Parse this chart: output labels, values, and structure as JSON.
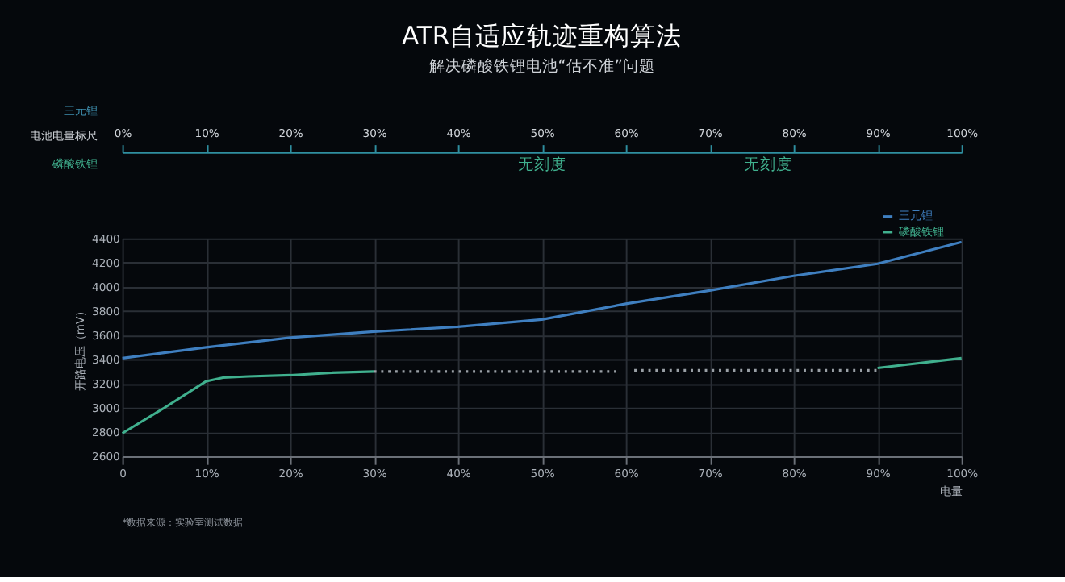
{
  "chart_data": {
    "type": "line",
    "title": "ATR自适应轨迹重构算法",
    "subtitle": "解决磷酸铁锂电池“估不准”问题",
    "xlabel": "电量",
    "ylabel": "开路电压（mV）",
    "x": [
      0,
      10,
      20,
      30,
      40,
      50,
      60,
      70,
      80,
      90,
      100
    ],
    "series": [
      {
        "name": "三元锂",
        "color": "#3f7fc0",
        "values": [
          3410,
          3500,
          3580,
          3630,
          3670,
          3730,
          3860,
          3970,
          4090,
          4190,
          4370
        ]
      },
      {
        "name": "磷酸铁锂",
        "color": "#40b08e",
        "x": [
          0,
          5,
          10,
          12,
          15,
          20,
          25,
          30,
          60,
          90,
          100
        ],
        "values": [
          2790,
          3000,
          3220,
          3250,
          3260,
          3270,
          3290,
          3300,
          null,
          3330,
          3410
        ]
      },
      {
        "color": "#9aa0a6",
        "line_style": "dotted",
        "x": [
          30,
          40,
          50,
          59
        ],
        "values": [
          3300,
          3300,
          3300,
          3300
        ]
      },
      {
        "color": "#9aa0a6",
        "line_style": "dotted",
        "x": [
          61,
          70,
          80,
          90
        ],
        "values": [
          3310,
          3310,
          3310,
          3310
        ]
      }
    ],
    "xlim": [
      0,
      100
    ],
    "xticks": [
      {
        "value": 0,
        "label": "0"
      },
      {
        "value": 10,
        "label": "10%"
      },
      {
        "value": 20,
        "label": "20%"
      },
      {
        "value": 30,
        "label": "30%"
      },
      {
        "value": 40,
        "label": "40%"
      },
      {
        "value": 50,
        "label": "50%"
      },
      {
        "value": 60,
        "label": "60%"
      },
      {
        "value": 70,
        "label": "70%"
      },
      {
        "value": 80,
        "label": "80%"
      },
      {
        "value": 90,
        "label": "90%"
      },
      {
        "value": 100,
        "label": "100%"
      }
    ],
    "x2lim": [
      0,
      100
    ],
    "x2ticks": [
      {
        "value": 0,
        "label": "0%"
      },
      {
        "value": 10,
        "label": "10%"
      },
      {
        "value": 20,
        "label": "20%"
      },
      {
        "value": 30,
        "label": "30%"
      },
      {
        "value": 40,
        "label": "40%"
      },
      {
        "value": 50,
        "label": "50%"
      },
      {
        "value": 60,
        "label": "60%"
      },
      {
        "value": 70,
        "label": "70%"
      },
      {
        "value": 80,
        "label": "80%"
      },
      {
        "value": 90,
        "label": "90%"
      },
      {
        "value": 100,
        "label": "100%"
      }
    ],
    "ylim": [
      2600,
      4400
    ],
    "yticks": [
      2600,
      2800,
      3000,
      3200,
      3400,
      3600,
      3800,
      4000,
      4200,
      4400
    ],
    "grid": true,
    "legend": "top right",
    "marker": "none",
    "line_style": "solid",
    "annotations": [
      "三元锂",
      "电池电量标尺",
      "磷酸铁锂",
      "无刻度",
      "无刻度",
      "*数据来源：实验室测试数据"
    ]
  }
}
